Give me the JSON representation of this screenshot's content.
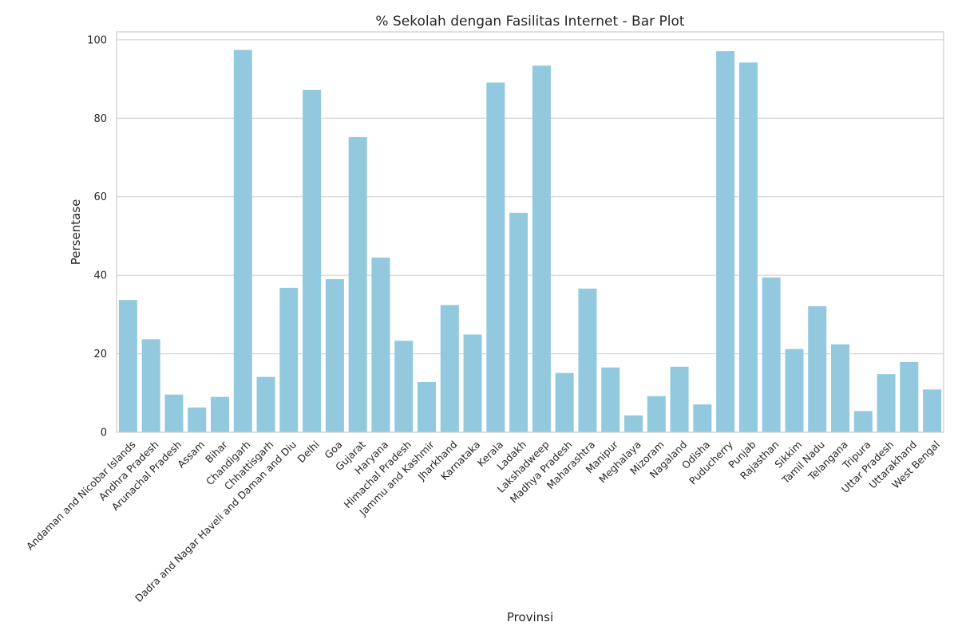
{
  "chart_data": {
    "type": "bar",
    "title": "% Sekolah dengan Fasilitas Internet - Bar Plot",
    "xlabel": "Provinsi",
    "ylabel": "Persentase",
    "ylim": [
      0,
      102
    ],
    "yticks": [
      0,
      20,
      40,
      60,
      80,
      100
    ],
    "grid": true,
    "bar_color": "#92c9de",
    "categories": [
      "Andaman and Nicobar Islands",
      "Andhra Pradesh",
      "Arunachal Pradesh",
      "Assam",
      "Bihar",
      "Chandigarh",
      "Chhattisgarh",
      "Dadra and Nagar Haveli and Daman and Diu",
      "Delhi",
      "Goa",
      "Gujarat",
      "Haryana",
      "Himachal Pradesh",
      "Jammu and Kashmir",
      "Jharkhand",
      "Karnataka",
      "Kerala",
      "Ladakh",
      "Lakshadweep",
      "Madhya Pradesh",
      "Maharashtra",
      "Manipur",
      "Meghalaya",
      "Mizoram",
      "Nagaland",
      "Odisha",
      "Puducherry",
      "Punjab",
      "Rajasthan",
      "Sikkim",
      "Tamil Nadu",
      "Telangana",
      "Tripura",
      "Uttar Pradesh",
      "Uttarakhand",
      "West Bengal"
    ],
    "values": [
      33.7,
      23.7,
      9.6,
      6.3,
      9.0,
      97.4,
      14.1,
      36.8,
      87.2,
      39.0,
      75.2,
      44.5,
      23.3,
      12.8,
      32.4,
      24.9,
      89.1,
      55.9,
      93.4,
      15.1,
      36.6,
      16.5,
      4.3,
      9.2,
      16.7,
      7.1,
      97.1,
      94.2,
      39.4,
      21.2,
      32.1,
      22.4,
      5.4,
      14.8,
      17.9,
      10.9
    ]
  }
}
